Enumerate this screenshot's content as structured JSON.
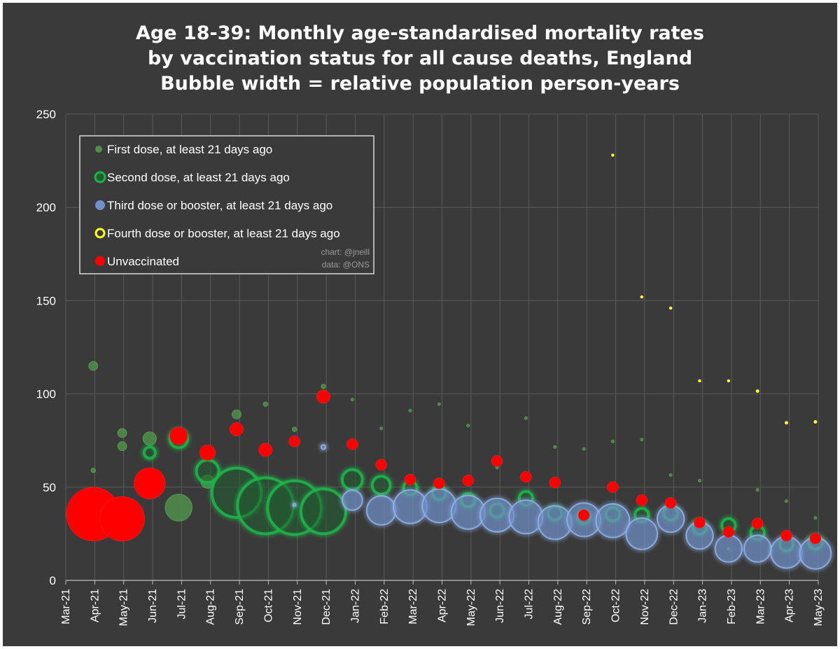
{
  "chart_data": {
    "type": "scatter",
    "subtype": "bubble",
    "title_lines": [
      "Age 18-39: Monthly age-standardised mortality rates",
      "by vaccination status for all cause deaths, England",
      "Bubble width = relative population person-years"
    ],
    "ylim": [
      0,
      250
    ],
    "yticks": [
      0,
      50,
      100,
      150,
      200,
      250
    ],
    "x_categories": [
      "Mar-21",
      "Apr-21",
      "May-21",
      "Jun-21",
      "Jul-21",
      "Aug-21",
      "Sep-21",
      "Oct-21",
      "Nov-21",
      "Dec-21",
      "Jan-22",
      "Feb-22",
      "Mar-22",
      "Apr-22",
      "May-22",
      "Jun-22",
      "Jul-22",
      "Aug-22",
      "Sep-22",
      "Oct-22",
      "Nov-22",
      "Dec-22",
      "Jan-23",
      "Feb-23",
      "Mar-23",
      "Apr-23",
      "May-23"
    ],
    "grid": true,
    "legend_position": "top-left",
    "credit": [
      "chart: @jneill",
      "data: @ONS"
    ],
    "series": [
      {
        "name": "First dose, at least 21 days ago",
        "color": "#4f8f4a",
        "points": [
          {
            "x": 0.95,
            "y": 115,
            "w": 2
          },
          {
            "x": 0.95,
            "y": 59,
            "w": 1
          },
          {
            "x": 1.95,
            "y": 79,
            "w": 2
          },
          {
            "x": 1.95,
            "y": 72,
            "w": 2
          },
          {
            "x": 2.9,
            "y": 76,
            "w": 3
          },
          {
            "x": 3.9,
            "y": 39,
            "w": 6
          },
          {
            "x": 4.9,
            "y": 53,
            "w": 3
          },
          {
            "x": 5.9,
            "y": 89,
            "w": 2
          },
          {
            "x": 6.9,
            "y": 94.5,
            "w": 1
          },
          {
            "x": 7.9,
            "y": 81,
            "w": 1
          },
          {
            "x": 8.9,
            "y": 104,
            "w": 1
          },
          {
            "x": 9.9,
            "y": 97,
            "w": 0.5
          },
          {
            "x": 10.9,
            "y": 81.5,
            "w": 0.5
          },
          {
            "x": 11.9,
            "y": 91,
            "w": 0.5
          },
          {
            "x": 12.9,
            "y": 94.5,
            "w": 0.5
          },
          {
            "x": 13.9,
            "y": 83,
            "w": 0.5
          },
          {
            "x": 14.9,
            "y": 60.5,
            "w": 0.5
          },
          {
            "x": 15.9,
            "y": 87,
            "w": 0.5
          },
          {
            "x": 16.9,
            "y": 71.5,
            "w": 0.5
          },
          {
            "x": 17.9,
            "y": 70.5,
            "w": 0.5
          },
          {
            "x": 18.9,
            "y": 74.5,
            "w": 0.5
          },
          {
            "x": 19.9,
            "y": 75.5,
            "w": 0.5
          },
          {
            "x": 20.9,
            "y": 56.5,
            "w": 0.5
          },
          {
            "x": 21.9,
            "y": 53.5,
            "w": 0.5
          },
          {
            "x": 22.9,
            "y": 17,
            "w": 0.5
          },
          {
            "x": 23.9,
            "y": 48.5,
            "w": 0.5
          },
          {
            "x": 24.9,
            "y": 42.5,
            "w": 0.5
          },
          {
            "x": 25.9,
            "y": 33.5,
            "w": 0.5
          }
        ]
      },
      {
        "name": "Second dose, at least 21 days ago",
        "color": "#1fb24a",
        "points": [
          {
            "x": 2.9,
            "y": 68.5,
            "w": 2.5
          },
          {
            "x": 3.9,
            "y": 76,
            "w": 4
          },
          {
            "x": 4.9,
            "y": 58.5,
            "w": 5
          },
          {
            "x": 5.9,
            "y": 47,
            "w": 11
          },
          {
            "x": 6.9,
            "y": 40,
            "w": 12.5
          },
          {
            "x": 7.9,
            "y": 39,
            "w": 12
          },
          {
            "x": 8.9,
            "y": 37,
            "w": 10
          },
          {
            "x": 9.9,
            "y": 54,
            "w": 4.5
          },
          {
            "x": 10.9,
            "y": 51,
            "w": 4
          },
          {
            "x": 11.9,
            "y": 49.5,
            "w": 3
          },
          {
            "x": 12.9,
            "y": 47,
            "w": 3
          },
          {
            "x": 13.9,
            "y": 43,
            "w": 3
          },
          {
            "x": 14.9,
            "y": 37.5,
            "w": 3
          },
          {
            "x": 15.9,
            "y": 44,
            "w": 3
          },
          {
            "x": 16.9,
            "y": 36,
            "w": 3
          },
          {
            "x": 17.9,
            "y": 34,
            "w": 3
          },
          {
            "x": 18.9,
            "y": 35.5,
            "w": 3
          },
          {
            "x": 19.9,
            "y": 35,
            "w": 3
          },
          {
            "x": 20.9,
            "y": 36,
            "w": 3
          },
          {
            "x": 21.9,
            "y": 28.5,
            "w": 3
          },
          {
            "x": 22.9,
            "y": 29.5,
            "w": 3
          },
          {
            "x": 23.9,
            "y": 25.5,
            "w": 3
          },
          {
            "x": 24.9,
            "y": 19.5,
            "w": 3
          },
          {
            "x": 25.9,
            "y": 20.5,
            "w": 3
          }
        ]
      },
      {
        "name": "Third dose or booster, at least 21 days ago",
        "color": "#6f8fc6",
        "points": [
          {
            "x": 7.9,
            "y": 40.5,
            "w": 0.5
          },
          {
            "x": 8.9,
            "y": 71.5,
            "w": 1
          },
          {
            "x": 9.9,
            "y": 43,
            "w": 4.5
          },
          {
            "x": 10.9,
            "y": 37.5,
            "w": 6.5
          },
          {
            "x": 11.9,
            "y": 39.5,
            "w": 7.5
          },
          {
            "x": 12.9,
            "y": 40,
            "w": 7.5
          },
          {
            "x": 13.9,
            "y": 36.5,
            "w": 7.5
          },
          {
            "x": 14.9,
            "y": 35,
            "w": 7.5
          },
          {
            "x": 15.9,
            "y": 34,
            "w": 7.5
          },
          {
            "x": 16.9,
            "y": 31,
            "w": 7.5
          },
          {
            "x": 17.9,
            "y": 32.5,
            "w": 7.5
          },
          {
            "x": 18.9,
            "y": 32,
            "w": 7.5
          },
          {
            "x": 19.9,
            "y": 25,
            "w": 7
          },
          {
            "x": 20.9,
            "y": 33,
            "w": 6
          },
          {
            "x": 21.9,
            "y": 24,
            "w": 6
          },
          {
            "x": 22.9,
            "y": 17,
            "w": 6
          },
          {
            "x": 23.9,
            "y": 17,
            "w": 6
          },
          {
            "x": 24.9,
            "y": 15,
            "w": 7
          },
          {
            "x": 25.9,
            "y": 14.5,
            "w": 7
          }
        ]
      },
      {
        "name": "Fourth dose or booster, at least 21 days ago",
        "color": "#ffff1e",
        "points": [
          {
            "x": 18.9,
            "y": 228,
            "w": 0.6
          },
          {
            "x": 19.9,
            "y": 152,
            "w": 0.35
          },
          {
            "x": 20.9,
            "y": 146,
            "w": 0.5
          },
          {
            "x": 21.9,
            "y": 107,
            "w": 0.6
          },
          {
            "x": 22.9,
            "y": 107,
            "w": 0.55
          },
          {
            "x": 23.9,
            "y": 101.5,
            "w": 0.7
          },
          {
            "x": 24.9,
            "y": 84.5,
            "w": 0.7
          },
          {
            "x": 25.9,
            "y": 85,
            "w": 0.7
          }
        ]
      },
      {
        "name": "Unvaccinated",
        "color": "#ff0000",
        "points": [
          {
            "x": 0.95,
            "y": 35.5,
            "w": 12
          },
          {
            "x": 1.95,
            "y": 33,
            "w": 10
          },
          {
            "x": 2.9,
            "y": 52,
            "w": 7
          },
          {
            "x": 3.9,
            "y": 77.5,
            "w": 4
          },
          {
            "x": 4.9,
            "y": 68.5,
            "w": 3.5
          },
          {
            "x": 5.9,
            "y": 81,
            "w": 3
          },
          {
            "x": 6.9,
            "y": 70,
            "w": 3
          },
          {
            "x": 7.9,
            "y": 74.5,
            "w": 2.5
          },
          {
            "x": 8.9,
            "y": 98.5,
            "w": 3
          },
          {
            "x": 9.9,
            "y": 73,
            "w": 2.5
          },
          {
            "x": 10.9,
            "y": 62,
            "w": 2.5
          },
          {
            "x": 11.9,
            "y": 54,
            "w": 2.5
          },
          {
            "x": 12.9,
            "y": 52,
            "w": 2.5
          },
          {
            "x": 13.9,
            "y": 53.5,
            "w": 2.5
          },
          {
            "x": 14.9,
            "y": 64,
            "w": 2.5
          },
          {
            "x": 15.9,
            "y": 55.5,
            "w": 2.5
          },
          {
            "x": 16.9,
            "y": 52.5,
            "w": 2.5
          },
          {
            "x": 17.9,
            "y": 35,
            "w": 2.5
          },
          {
            "x": 18.9,
            "y": 50,
            "w": 2.5
          },
          {
            "x": 19.9,
            "y": 43,
            "w": 2.5
          },
          {
            "x": 20.9,
            "y": 41.5,
            "w": 2.5
          },
          {
            "x": 21.9,
            "y": 31,
            "w": 2.5
          },
          {
            "x": 22.9,
            "y": 26,
            "w": 2.5
          },
          {
            "x": 23.9,
            "y": 30.5,
            "w": 2.5
          },
          {
            "x": 24.9,
            "y": 24,
            "w": 2.5
          },
          {
            "x": 25.9,
            "y": 22.5,
            "w": 2.5
          }
        ]
      }
    ]
  }
}
